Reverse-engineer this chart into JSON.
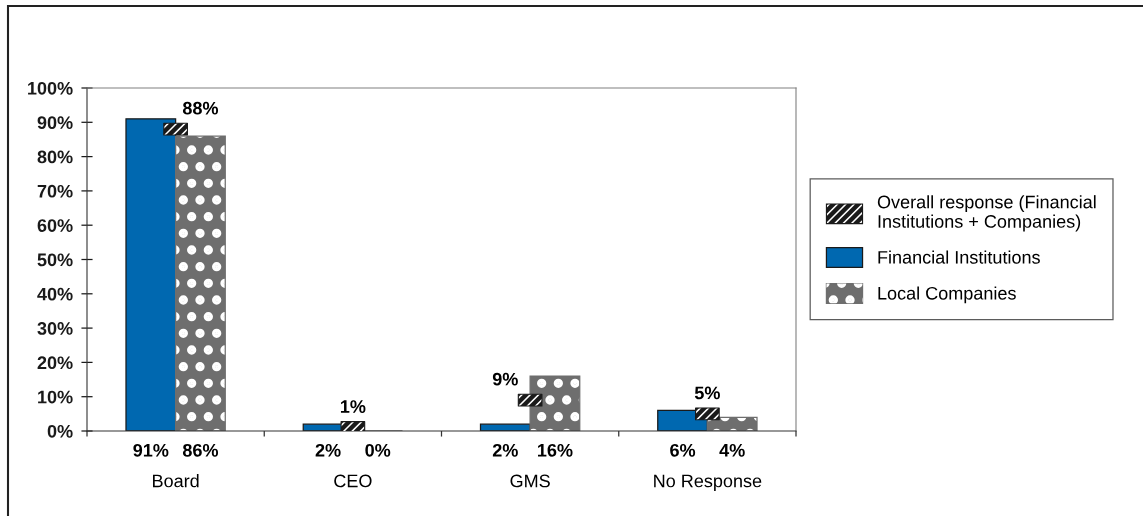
{
  "chart_data": {
    "type": "bar",
    "categories": [
      "Board",
      "CEO",
      "GMS",
      "No Response"
    ],
    "series": [
      {
        "name": "Overall response (Financial\nInstitutions + Companies)",
        "type": "scatter",
        "marker": "square",
        "color": "#1a1a1a",
        "values": [
          88,
          1,
          9,
          5
        ],
        "value_labels": [
          "88%",
          "1%",
          "9%",
          "5%"
        ]
      },
      {
        "name": "Financial Institutions",
        "color": "#0068b0",
        "values": [
          91,
          2,
          2,
          6
        ],
        "value_labels": [
          "91%",
          "2%",
          "2%",
          "6%"
        ]
      },
      {
        "name": "Local Companies",
        "color": "#6e6e6e",
        "values": [
          86,
          0,
          16,
          4
        ],
        "value_labels": [
          "86%",
          "0%",
          "16%",
          "4%"
        ]
      }
    ],
    "ylim": [
      0,
      100
    ],
    "yticks": [
      {
        "value": 0,
        "label": "0%"
      },
      {
        "value": 10,
        "label": "10%"
      },
      {
        "value": 20,
        "label": "20%"
      },
      {
        "value": 30,
        "label": "30%"
      },
      {
        "value": 40,
        "label": "40%"
      },
      {
        "value": 50,
        "label": "50%"
      },
      {
        "value": 60,
        "label": "60%"
      },
      {
        "value": 70,
        "label": "70%"
      },
      {
        "value": 80,
        "label": "80%"
      },
      {
        "value": 90,
        "label": "90%"
      },
      {
        "value": 100,
        "label": "100%"
      }
    ],
    "legend": "right"
  }
}
